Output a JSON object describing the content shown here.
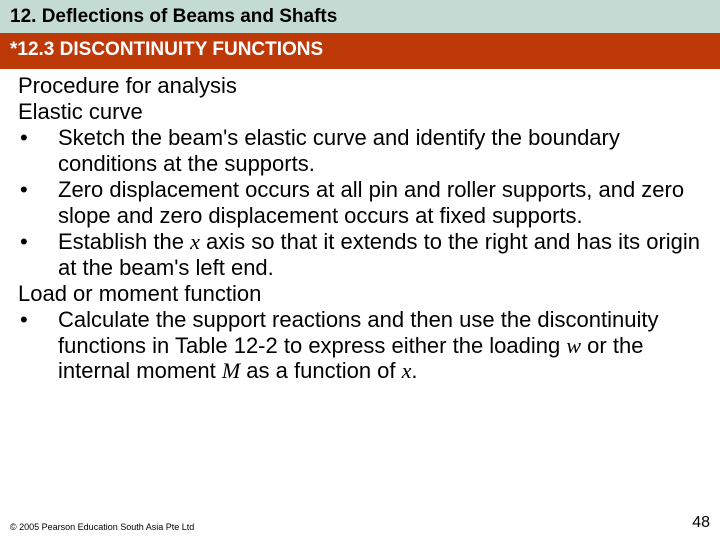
{
  "colors": {
    "chapter_bg": "#c4dbd4",
    "section_bg": "#bd3908",
    "section_fg": "#ffffff",
    "body_fg": "#000000",
    "page_bg": "#ffffff"
  },
  "typography": {
    "header_fontsize": 19,
    "body_fontsize": 22,
    "footer_fontsize": 9,
    "pagenum_fontsize": 16,
    "body_lineheight": 1.18
  },
  "chapter_title": "12. Deflections of Beams and Shafts",
  "section_title": "*12.3 DISCONTINUITY FUNCTIONS",
  "procedure_heading": "Procedure for analysis",
  "group1_heading": "Elastic curve",
  "group1_bullets": [
    "Sketch the beam's elastic curve and identify the boundary conditions at the supports.",
    "Zero displacement occurs at all pin and roller supports, and zero slope and zero displacement occurs at fixed supports."
  ],
  "group1_bullet3_parts": {
    "pre": "Establish the ",
    "var": "x",
    "post": " axis so that it extends to the right and has its origin at the beam's left end."
  },
  "group2_heading": "Load or moment function",
  "group2_bullet_parts": {
    "p1": "Calculate the support reactions and then use the discontinuity functions in Table 12-2 to express either the loading ",
    "v1": "w",
    "p2": " or the internal moment ",
    "v2": "M",
    "p3": " as a function of ",
    "v3": "x",
    "p4": "."
  },
  "bullet_char": "•",
  "copyright": "© 2005 Pearson Education South Asia Pte Ltd",
  "page_number": "48"
}
